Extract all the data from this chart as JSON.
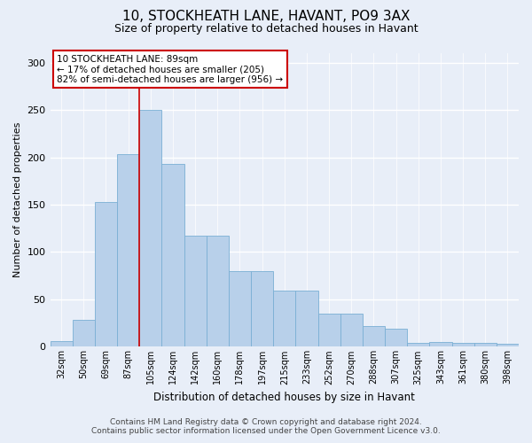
{
  "title_line1": "10, STOCKHEATH LANE, HAVANT, PO9 3AX",
  "title_line2": "Size of property relative to detached houses in Havant",
  "xlabel": "Distribution of detached houses by size in Havant",
  "ylabel": "Number of detached properties",
  "categories": [
    "32sqm",
    "50sqm",
    "69sqm",
    "87sqm",
    "105sqm",
    "124sqm",
    "142sqm",
    "160sqm",
    "178sqm",
    "197sqm",
    "215sqm",
    "233sqm",
    "252sqm",
    "270sqm",
    "288sqm",
    "307sqm",
    "325sqm",
    "343sqm",
    "361sqm",
    "380sqm",
    "398sqm"
  ],
  "values": [
    6,
    28,
    153,
    203,
    250,
    193,
    117,
    117,
    80,
    80,
    59,
    59,
    35,
    35,
    22,
    19,
    4,
    5,
    4,
    4,
    3
  ],
  "bar_color": "#b8d0ea",
  "bar_edge_color": "#7aafd4",
  "property_label": "10 STOCKHEATH LANE: 89sqm",
  "annotation_line2": "← 17% of detached houses are smaller (205)",
  "annotation_line3": "82% of semi-detached houses are larger (956) →",
  "vline_x_index": 3.5,
  "ylim": [
    0,
    310
  ],
  "yticks": [
    0,
    50,
    100,
    150,
    200,
    250,
    300
  ],
  "footer_line1": "Contains HM Land Registry data © Crown copyright and database right 2024.",
  "footer_line2": "Contains public sector information licensed under the Open Government Licence v3.0.",
  "bg_color": "#e8eef8",
  "grid_color": "#ffffff",
  "title_fontsize": 11,
  "subtitle_fontsize": 9,
  "tick_fontsize": 7,
  "ylabel_fontsize": 8,
  "xlabel_fontsize": 8.5,
  "annot_fontsize": 7.5,
  "footer_fontsize": 6.5
}
